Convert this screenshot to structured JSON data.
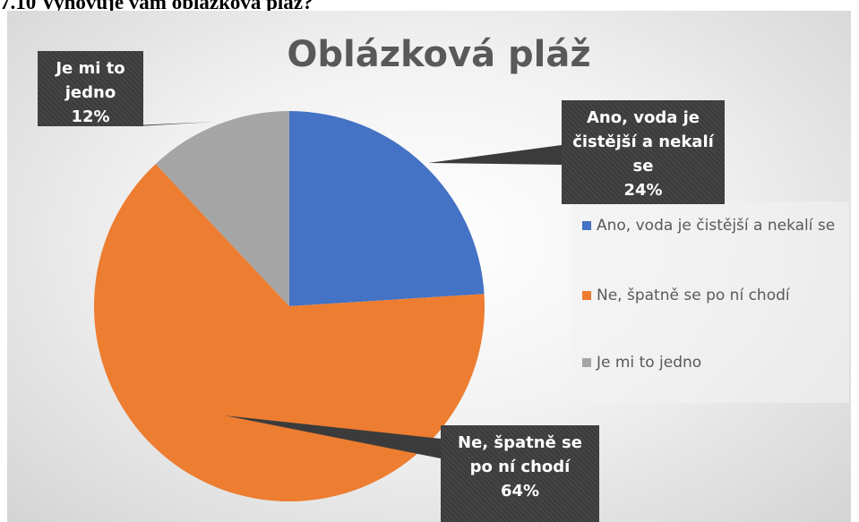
{
  "heading": "7.10 Vyhovuje vám oblázková pláž?",
  "chart_data": {
    "type": "pie",
    "title": "Oblázková pláž",
    "categories": [
      "Ano, voda je čistější a nekalí se",
      "Ne, špatně se po ní chodí",
      "Je mi to jedno"
    ],
    "values": [
      24,
      64,
      12
    ],
    "value_labels": [
      "24%",
      "64%",
      "12%"
    ],
    "colors": [
      "#4472c4",
      "#ed7d31",
      "#a5a5a5"
    ],
    "legend": "right"
  }
}
